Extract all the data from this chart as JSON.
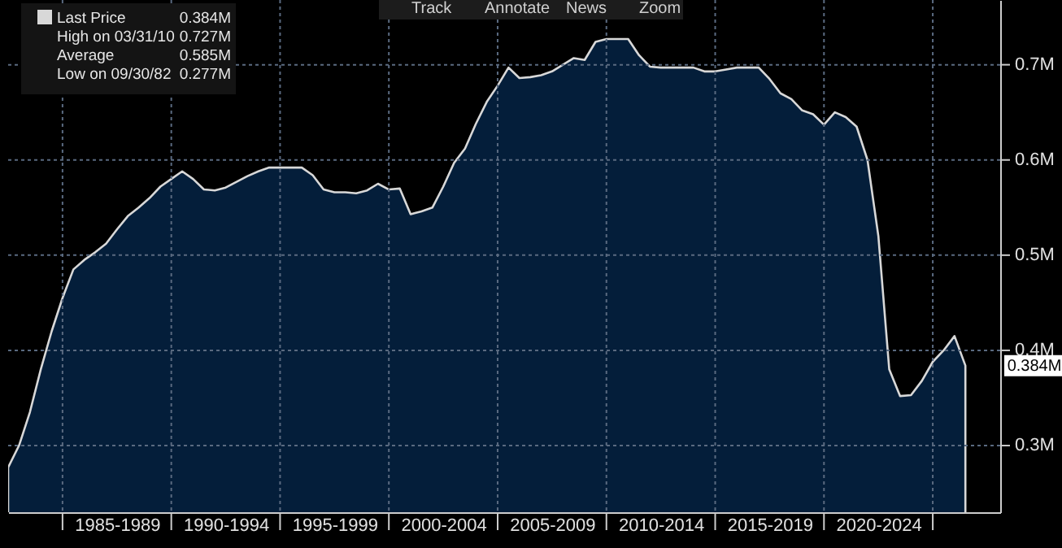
{
  "chart_data": {
    "type": "area",
    "categories": [
      null,
      null,
      null,
      null,
      null,
      null,
      null,
      null,
      null,
      null,
      "1985-1989",
      null,
      null,
      null,
      null,
      null,
      null,
      null,
      null,
      null,
      "1990-1994",
      null,
      null,
      null,
      null,
      null,
      null,
      null,
      null,
      null,
      "1995-1999",
      null,
      null,
      null,
      null,
      null,
      null,
      null,
      null,
      null,
      "2000-2004",
      null,
      null,
      null,
      null,
      null,
      null,
      null,
      null,
      null,
      "2005-2009",
      null,
      null,
      null,
      null,
      null,
      null,
      null,
      null,
      null,
      "2010-2014",
      null,
      null,
      null,
      null,
      null,
      null,
      null,
      null,
      null,
      "2015-2019",
      null,
      null,
      null,
      null,
      null,
      null,
      null,
      null,
      null,
      "2020-2024",
      null,
      null,
      null,
      null,
      null,
      null,
      null,
      null
    ],
    "series": [
      {
        "name": "Last Price",
        "color": "#d8d8d8",
        "values": [
          0.277,
          0.3,
          0.335,
          0.38,
          0.42,
          0.455,
          0.485,
          0.495,
          0.503,
          0.512,
          0.527,
          0.541,
          0.55,
          0.56,
          0.572,
          0.58,
          0.588,
          0.58,
          0.569,
          0.568,
          0.571,
          0.577,
          0.583,
          0.588,
          0.592,
          0.592,
          0.592,
          0.592,
          0.584,
          0.569,
          0.566,
          0.566,
          0.565,
          0.568,
          0.575,
          0.569,
          0.57,
          0.543,
          0.546,
          0.55,
          0.572,
          0.597,
          0.612,
          0.638,
          0.661,
          0.678,
          0.697,
          0.686,
          0.687,
          0.689,
          0.693,
          0.7,
          0.707,
          0.705,
          0.724,
          0.727,
          0.727,
          0.727,
          0.71,
          0.698,
          0.697,
          0.697,
          0.697,
          0.697,
          0.693,
          0.693,
          0.695,
          0.697,
          0.697,
          0.697,
          0.685,
          0.67,
          0.664,
          0.652,
          0.648,
          0.637,
          0.65,
          0.645,
          0.635,
          0.6,
          0.52,
          0.38,
          0.352,
          0.353,
          0.368,
          0.388,
          0.4,
          0.415,
          0.384
        ]
      }
    ],
    "ylim": [
      0.23,
      0.768
    ],
    "yticks": [
      {
        "value": 0.3,
        "label": "0.3M"
      },
      {
        "value": 0.4,
        "label": "0.4M"
      },
      {
        "value": 0.5,
        "label": "0.5M"
      },
      {
        "value": 0.6,
        "label": "0.6M"
      },
      {
        "value": 0.7,
        "label": "0.7M"
      }
    ],
    "grid": true,
    "legend": "top left",
    "annotations": [
      "0.384M",
      "High on 03/31/10",
      "0.727M",
      "Average",
      "0.585M",
      "Low on 09/30/82",
      "0.277M",
      "Track",
      "Annotate",
      "News",
      "Zoom",
      "0.384M"
    ]
  }
}
